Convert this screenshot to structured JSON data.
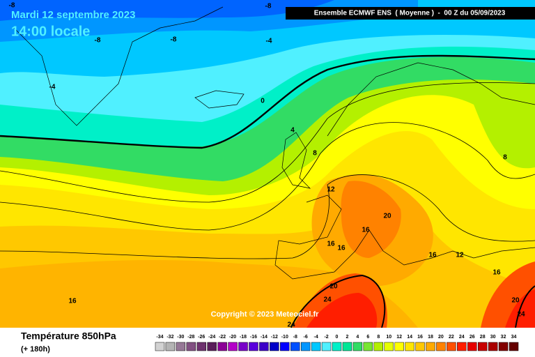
{
  "header": {
    "date": "Mardi 12 septembre 2023",
    "time": "14:00 locale",
    "banner": "Ensemble ECMWF ENS  ( Moyenne )  -  00 Z du 05/09/2023"
  },
  "map": {
    "contour_labels": [
      -8,
      -8,
      -8,
      -8,
      -4,
      -4,
      0,
      4,
      8,
      8,
      12,
      12,
      16,
      16,
      16,
      16,
      16,
      16,
      20,
      20,
      20,
      24,
      24,
      24
    ],
    "copyright": "Copyright © 2023 Meteociel.fr"
  },
  "legend": {
    "title": "Température 850hPa",
    "lead": "(+ 180h)",
    "scale": [
      -34,
      -32,
      -30,
      -28,
      -26,
      -24,
      -22,
      -20,
      -18,
      -16,
      -14,
      -12,
      -10,
      -8,
      -6,
      -4,
      -2,
      0,
      2,
      4,
      6,
      8,
      10,
      12,
      14,
      16,
      18,
      20,
      22,
      24,
      26,
      28,
      30,
      32,
      34
    ],
    "colors": [
      "#d2d2d2",
      "#b4b4b4",
      "#967896",
      "#825082",
      "#6e326e",
      "#5a1e5a",
      "#8c0096",
      "#b400c8",
      "#7800c8",
      "#5a00dc",
      "#3c00c8",
      "#0000c8",
      "#0000ff",
      "#0050ff",
      "#0096ff",
      "#00c8ff",
      "#50f0ff",
      "#00f0c8",
      "#00e696",
      "#32dc64",
      "#78e632",
      "#b4f000",
      "#e6ff00",
      "#ffff00",
      "#ffe600",
      "#ffc800",
      "#ffaa00",
      "#ff8200",
      "#ff5000",
      "#ff1e00",
      "#e60000",
      "#c80000",
      "#aa0000",
      "#820000",
      "#640000"
    ]
  }
}
